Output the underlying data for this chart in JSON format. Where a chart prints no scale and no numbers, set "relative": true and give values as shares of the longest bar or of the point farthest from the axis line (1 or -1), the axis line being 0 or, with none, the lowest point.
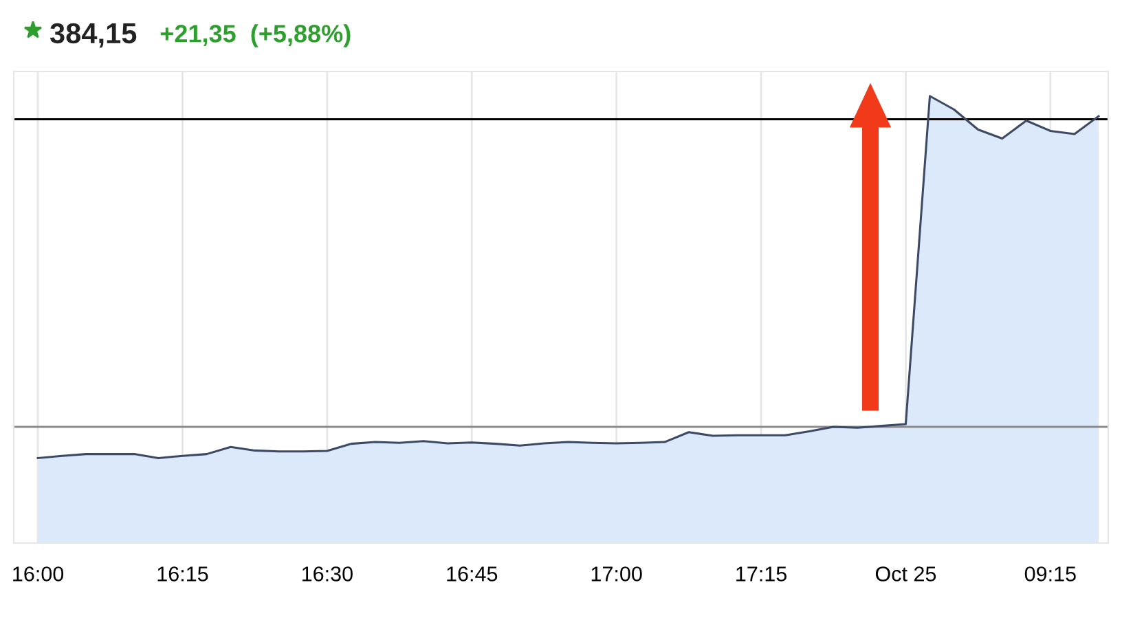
{
  "chart_data": {
    "type": "area",
    "title": "384,15",
    "subtitle": "+21,35  (+5,88%)",
    "relative": true,
    "grid": "x",
    "categories": [
      "16:00",
      null,
      null,
      null,
      null,
      null,
      "16:15",
      null,
      null,
      null,
      null,
      null,
      "16:30",
      null,
      null,
      null,
      null,
      null,
      "16:45",
      null,
      null,
      null,
      null,
      null,
      "17:00",
      null,
      null,
      null,
      null,
      null,
      "17:15",
      null,
      null,
      null,
      null,
      null,
      "Oct 25",
      null,
      null,
      null,
      null,
      null,
      "09:15",
      null,
      null
    ],
    "series": [
      {
        "color": "#3d4a66",
        "values": [
          0.19,
          0.195,
          0.199,
          0.199,
          0.199,
          0.19,
          0.195,
          0.199,
          0.215,
          0.207,
          0.205,
          0.205,
          0.206,
          0.222,
          0.226,
          0.224,
          0.228,
          0.223,
          0.225,
          0.222,
          0.218,
          0.223,
          0.226,
          0.224,
          0.223,
          0.224,
          0.226,
          0.248,
          0.24,
          0.241,
          0.241,
          0.241,
          0.25,
          0.26,
          0.258,
          0.262,
          0.266,
          1.0,
          0.97,
          0.925,
          0.905,
          0.945,
          0.922,
          0.915,
          0.955
        ]
      }
    ],
    "ref_lines": [
      {
        "axis": "y",
        "value": 0.948,
        "color": "#000000"
      },
      {
        "axis": "y",
        "value": 0.26,
        "color": "#8c8c8c"
      }
    ]
  }
}
